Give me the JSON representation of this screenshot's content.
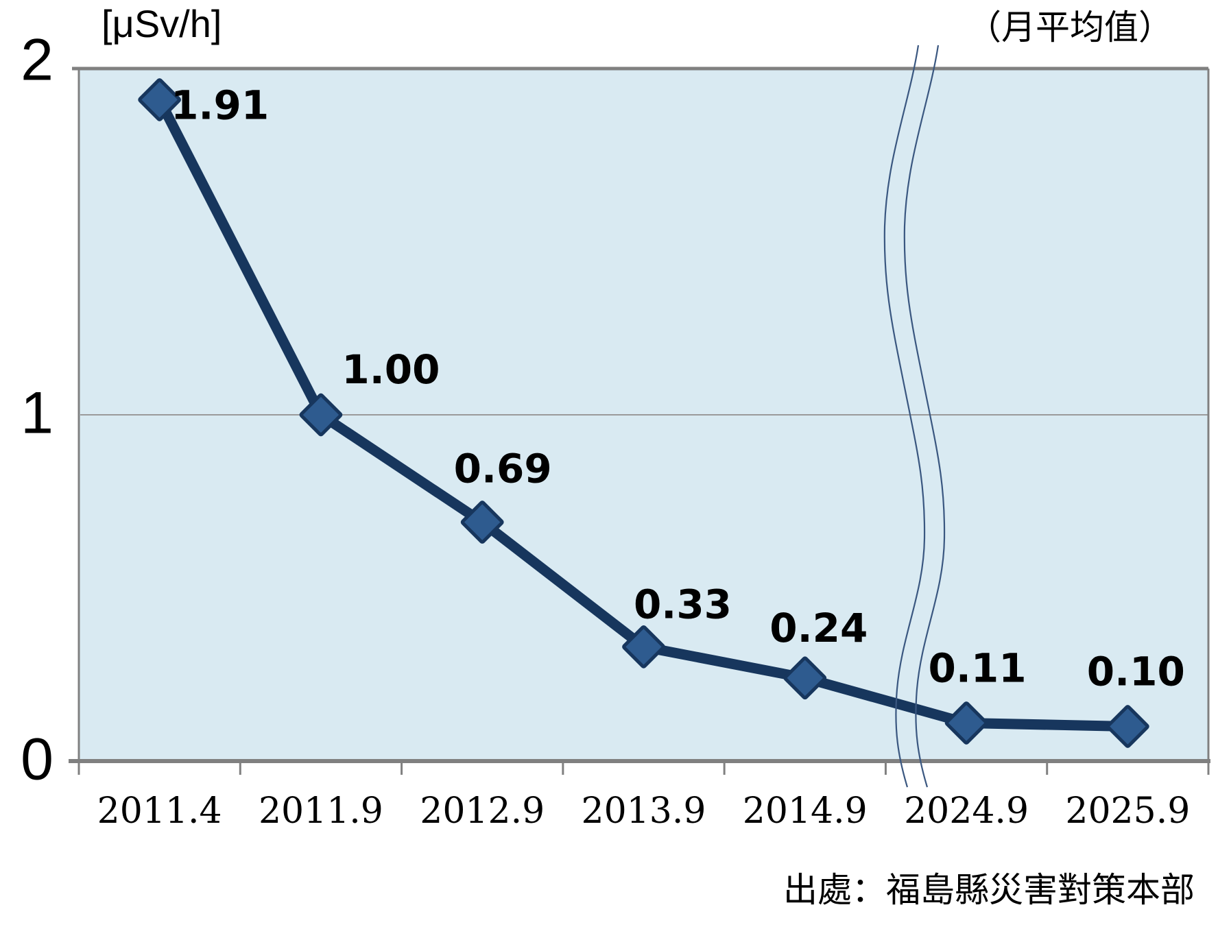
{
  "chart_data": {
    "type": "line",
    "title": "",
    "unit_label": "[μSv/h]",
    "subtitle": "（月平均值）",
    "source": "出處：福島縣災害對策本部",
    "categories": [
      "2011.4",
      "2011.9",
      "2012.9",
      "2013.9",
      "2014.9",
      "2024.9",
      "2025.9"
    ],
    "values": [
      1.91,
      1.0,
      0.69,
      0.33,
      0.24,
      0.11,
      0.1
    ],
    "data_labels": [
      "1.91",
      "1.00",
      "0.69",
      "0.33",
      "0.24",
      "0.11",
      "0.10"
    ],
    "xlabel": "",
    "ylabel": "[μSv/h]",
    "ylim": [
      0,
      2
    ],
    "yticks": [
      {
        "value": 0,
        "label": "0"
      },
      {
        "value": 1,
        "label": "1"
      },
      {
        "value": 2,
        "label": "2"
      }
    ],
    "grid": "horizontal-at-1",
    "legend": "none",
    "axis_break_between": [
      "2014.9",
      "2024.9"
    ],
    "colors": {
      "plot_background": "#d9eaf2",
      "line": "#17365d",
      "marker_fill": "#2e5b8f",
      "marker_border": "#17365d",
      "axis": "#808080",
      "gridline": "#9a9a9a",
      "break_lines": "#3a5780",
      "text": "#000000"
    }
  }
}
